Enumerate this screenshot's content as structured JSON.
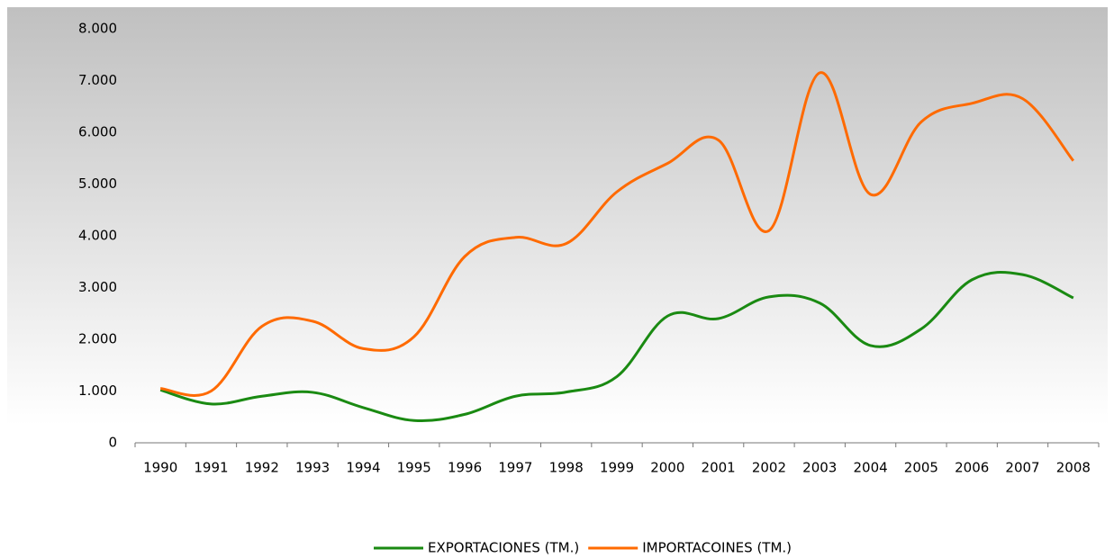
{
  "chart_data": {
    "type": "line",
    "categories": [
      "1990",
      "1991",
      "1992",
      "1993",
      "1994",
      "1995",
      "1996",
      "1997",
      "1998",
      "1999",
      "2000",
      "2001",
      "2002",
      "2003",
      "2004",
      "2005",
      "2006",
      "2007",
      "2008"
    ],
    "series": [
      {
        "name": "EXPORTACIONES (TM.)",
        "color": "#1a8a12",
        "values": [
          1020,
          750,
          900,
          975,
          680,
          430,
          550,
          900,
          980,
          1280,
          2450,
          2400,
          2820,
          2700,
          1880,
          2200,
          3150,
          3250,
          2800
        ]
      },
      {
        "name": "IMPORTACOINES (TM.)",
        "color": "#ff6a00",
        "values": [
          1050,
          1000,
          2250,
          2350,
          1820,
          2050,
          3600,
          3970,
          3850,
          4850,
          5400,
          5850,
          4100,
          7150,
          4800,
          6200,
          6560,
          6650,
          5450
        ]
      }
    ],
    "ylim": [
      0,
      8000
    ],
    "yticks": [
      0,
      {
        "value": 1000,
        "label": "1.000"
      },
      {
        "value": 2000,
        "label": "2.000"
      },
      {
        "value": 3000,
        "label": "3.000"
      },
      {
        "value": 4000,
        "label": "4.000"
      },
      {
        "value": 5000,
        "label": "5.000"
      },
      {
        "value": 6000,
        "label": "6.000"
      },
      {
        "value": 7000,
        "label": "7.000"
      },
      {
        "value": 8000,
        "label": "8.000"
      }
    ],
    "legend": "bottom"
  }
}
